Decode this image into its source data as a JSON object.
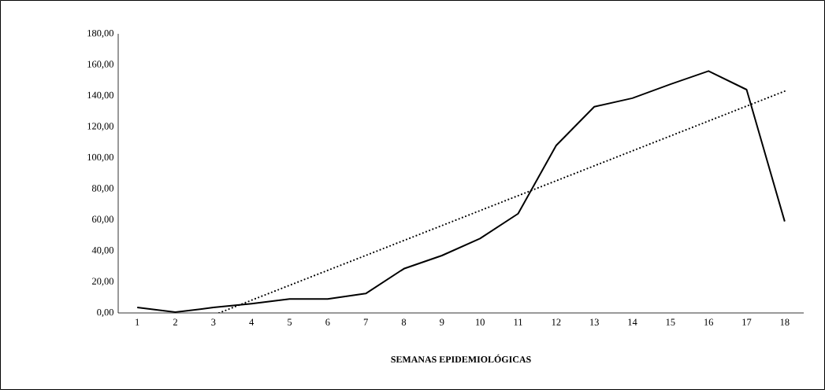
{
  "chart_data": {
    "type": "line",
    "xlabel": "**SEMANAS EPIDEMIOLÓGICAS**",
    "x": [
      1,
      2,
      3,
      4,
      5,
      6,
      7,
      8,
      9,
      10,
      11,
      12,
      13,
      14,
      15,
      16,
      17,
      18
    ],
    "xlim": [
      0.5,
      18.5
    ],
    "xticks": [
      1,
      2,
      3,
      4,
      5,
      6,
      7,
      8,
      9,
      10,
      11,
      12,
      13,
      14,
      15,
      16,
      17,
      18
    ],
    "ylim": [
      0,
      180
    ],
    "yticks": [
      {
        "value": 0,
        "label": "0,00"
      },
      {
        "value": 20,
        "label": "20,00"
      },
      {
        "value": 40,
        "label": "40,00"
      },
      {
        "value": 60,
        "label": "60,00"
      },
      {
        "value": 80,
        "label": "80,00"
      },
      {
        "value": 100,
        "label": "100,00"
      },
      {
        "value": 120,
        "label": "120,00"
      },
      {
        "value": 140,
        "label": "140,00"
      },
      {
        "value": 160,
        "label": "160,00"
      },
      {
        "value": 180,
        "label": "180,00"
      }
    ],
    "marker": "none",
    "series": [
      {
        "color": "#000000",
        "line_style": "solid",
        "values": [
          3.5,
          0.5,
          3.5,
          6,
          9,
          9,
          12.5,
          28.5,
          37,
          48,
          64,
          108,
          133,
          138.5,
          147.5,
          156,
          144,
          59
        ]
      },
      {
        "type": "line",
        "color": "#000000",
        "line_style": "dotted",
        "x": [
          3.15,
          18
        ],
        "values": [
          0,
          143
        ]
      }
    ]
  }
}
